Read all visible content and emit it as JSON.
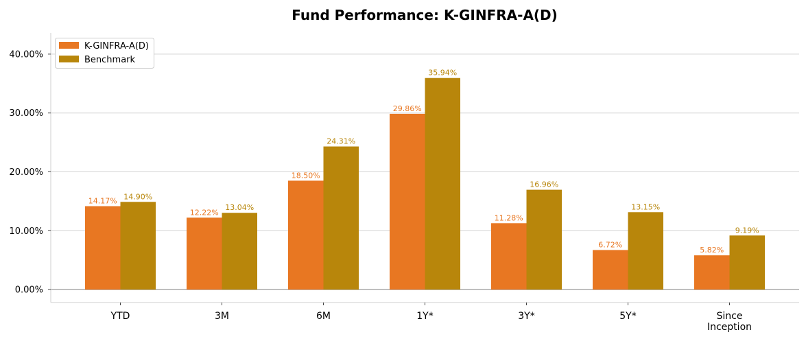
{
  "chart_data": {
    "type": "bar",
    "title": "Fund Performance: K-GINFRA-A(D)",
    "xlabel": "",
    "ylabel": "",
    "categories": [
      "YTD",
      "3M",
      "6M",
      "1Y*",
      "3Y*",
      "5Y*",
      "Since\nInception"
    ],
    "series": [
      {
        "name": "K-GINFRA-A(D)",
        "color": "#E87722",
        "values": [
          14.17,
          12.22,
          18.5,
          29.86,
          11.28,
          6.72,
          5.82
        ],
        "labels": [
          "14.17%",
          "12.22%",
          "18.50%",
          "29.86%",
          "11.28%",
          "6.72%",
          "5.82%"
        ]
      },
      {
        "name": "Benchmark",
        "color": "#B8860B",
        "values": [
          14.9,
          13.04,
          24.31,
          35.94,
          16.96,
          13.15,
          9.19
        ],
        "labels": [
          "14.90%",
          "13.04%",
          "24.31%",
          "35.94%",
          "16.96%",
          "13.15%",
          "9.19%"
        ]
      }
    ],
    "yticks": [
      0,
      10,
      20,
      30,
      40
    ],
    "ytick_labels": [
      "0.00%",
      "10.00%",
      "20.00%",
      "30.00%",
      "40.00%"
    ],
    "ylim": [
      -2.2,
      43.6
    ],
    "grid": true,
    "legend_position": "top-left"
  }
}
